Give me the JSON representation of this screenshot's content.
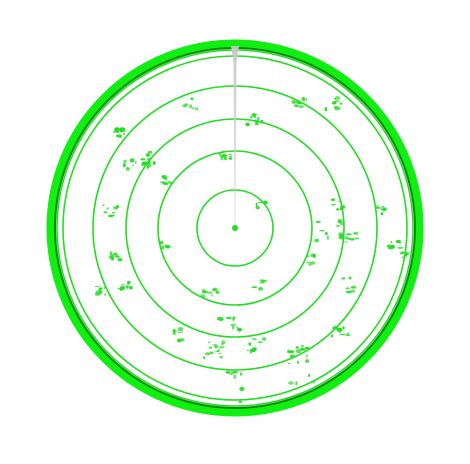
{
  "radar": {
    "ring_count": 5,
    "has_center_dot": true,
    "has_sweep_line": true,
    "colors": {
      "ring": "#22dd22",
      "outer_band": "#11ee11",
      "outer_band_dark": "#0a8a0a",
      "echo": "#22dd22",
      "sweep": "#c8c8c8",
      "center_dot": "#22dd22",
      "background": "#ffffff"
    }
  }
}
